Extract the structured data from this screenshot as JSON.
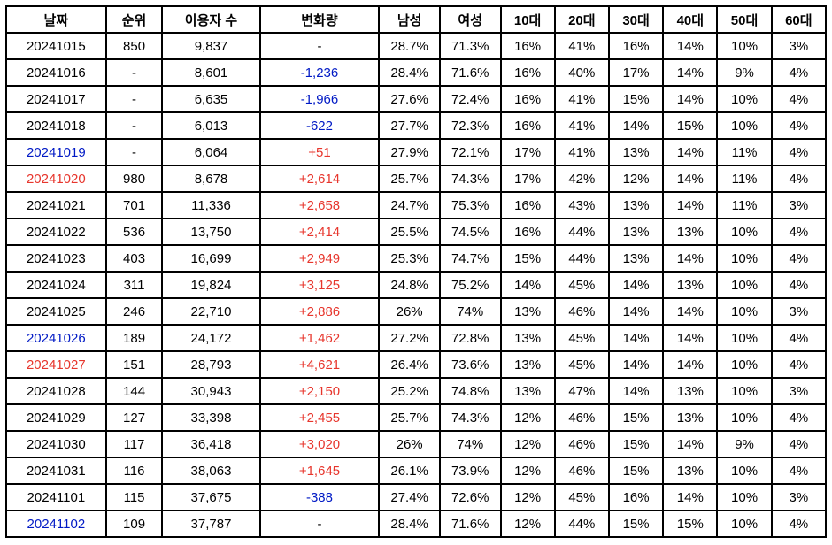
{
  "columns": [
    {
      "key": "date",
      "label": "날짜",
      "class": "date-col"
    },
    {
      "key": "rank",
      "label": "순위",
      "class": "rank-col"
    },
    {
      "key": "users",
      "label": "이용자 수",
      "class": "users-col"
    },
    {
      "key": "change",
      "label": "변화량",
      "class": "change-col"
    },
    {
      "key": "male",
      "label": "남성",
      "class": "pct-col"
    },
    {
      "key": "female",
      "label": "여성",
      "class": "pct-col"
    },
    {
      "key": "a10",
      "label": "10대",
      "class": "age-col"
    },
    {
      "key": "a20",
      "label": "20대",
      "class": "age-col"
    },
    {
      "key": "a30",
      "label": "30대",
      "class": "age-col"
    },
    {
      "key": "a40",
      "label": "40대",
      "class": "age-col"
    },
    {
      "key": "a50",
      "label": "50대",
      "class": "age-col"
    },
    {
      "key": "a60",
      "label": "60대",
      "class": "age-col"
    }
  ],
  "colors": {
    "default": "#000000",
    "blue": "#0019c5",
    "red": "#e7362d"
  },
  "rows": [
    {
      "date": "20241015",
      "date_color": "default",
      "rank": "850",
      "users": "9,837",
      "change": "-",
      "change_color": "default",
      "male": "28.7%",
      "female": "71.3%",
      "a10": "16%",
      "a20": "41%",
      "a30": "16%",
      "a40": "14%",
      "a50": "10%",
      "a60": "3%"
    },
    {
      "date": "20241016",
      "date_color": "default",
      "rank": "-",
      "users": "8,601",
      "change": "-1,236",
      "change_color": "blue",
      "male": "28.4%",
      "female": "71.6%",
      "a10": "16%",
      "a20": "40%",
      "a30": "17%",
      "a40": "14%",
      "a50": "9%",
      "a60": "4%"
    },
    {
      "date": "20241017",
      "date_color": "default",
      "rank": "-",
      "users": "6,635",
      "change": "-1,966",
      "change_color": "blue",
      "male": "27.6%",
      "female": "72.4%",
      "a10": "16%",
      "a20": "41%",
      "a30": "15%",
      "a40": "14%",
      "a50": "10%",
      "a60": "4%"
    },
    {
      "date": "20241018",
      "date_color": "default",
      "rank": "-",
      "users": "6,013",
      "change": "-622",
      "change_color": "blue",
      "male": "27.7%",
      "female": "72.3%",
      "a10": "16%",
      "a20": "41%",
      "a30": "14%",
      "a40": "15%",
      "a50": "10%",
      "a60": "4%"
    },
    {
      "date": "20241019",
      "date_color": "blue",
      "rank": "-",
      "users": "6,064",
      "change": "+51",
      "change_color": "red",
      "male": "27.9%",
      "female": "72.1%",
      "a10": "17%",
      "a20": "41%",
      "a30": "13%",
      "a40": "14%",
      "a50": "11%",
      "a60": "4%"
    },
    {
      "date": "20241020",
      "date_color": "red",
      "rank": "980",
      "users": "8,678",
      "change": "+2,614",
      "change_color": "red",
      "male": "25.7%",
      "female": "74.3%",
      "a10": "17%",
      "a20": "42%",
      "a30": "12%",
      "a40": "14%",
      "a50": "11%",
      "a60": "4%"
    },
    {
      "date": "20241021",
      "date_color": "default",
      "rank": "701",
      "users": "11,336",
      "change": "+2,658",
      "change_color": "red",
      "male": "24.7%",
      "female": "75.3%",
      "a10": "16%",
      "a20": "43%",
      "a30": "13%",
      "a40": "14%",
      "a50": "11%",
      "a60": "3%"
    },
    {
      "date": "20241022",
      "date_color": "default",
      "rank": "536",
      "users": "13,750",
      "change": "+2,414",
      "change_color": "red",
      "male": "25.5%",
      "female": "74.5%",
      "a10": "16%",
      "a20": "44%",
      "a30": "13%",
      "a40": "13%",
      "a50": "10%",
      "a60": "4%"
    },
    {
      "date": "20241023",
      "date_color": "default",
      "rank": "403",
      "users": "16,699",
      "change": "+2,949",
      "change_color": "red",
      "male": "25.3%",
      "female": "74.7%",
      "a10": "15%",
      "a20": "44%",
      "a30": "13%",
      "a40": "14%",
      "a50": "10%",
      "a60": "4%"
    },
    {
      "date": "20241024",
      "date_color": "default",
      "rank": "311",
      "users": "19,824",
      "change": "+3,125",
      "change_color": "red",
      "male": "24.8%",
      "female": "75.2%",
      "a10": "14%",
      "a20": "45%",
      "a30": "14%",
      "a40": "13%",
      "a50": "10%",
      "a60": "4%"
    },
    {
      "date": "20241025",
      "date_color": "default",
      "rank": "246",
      "users": "22,710",
      "change": "+2,886",
      "change_color": "red",
      "male": "26%",
      "female": "74%",
      "a10": "13%",
      "a20": "46%",
      "a30": "14%",
      "a40": "14%",
      "a50": "10%",
      "a60": "3%"
    },
    {
      "date": "20241026",
      "date_color": "blue",
      "rank": "189",
      "users": "24,172",
      "change": "+1,462",
      "change_color": "red",
      "male": "27.2%",
      "female": "72.8%",
      "a10": "13%",
      "a20": "45%",
      "a30": "14%",
      "a40": "14%",
      "a50": "10%",
      "a60": "4%"
    },
    {
      "date": "20241027",
      "date_color": "red",
      "rank": "151",
      "users": "28,793",
      "change": "+4,621",
      "change_color": "red",
      "male": "26.4%",
      "female": "73.6%",
      "a10": "13%",
      "a20": "45%",
      "a30": "14%",
      "a40": "14%",
      "a50": "10%",
      "a60": "4%"
    },
    {
      "date": "20241028",
      "date_color": "default",
      "rank": "144",
      "users": "30,943",
      "change": "+2,150",
      "change_color": "red",
      "male": "25.2%",
      "female": "74.8%",
      "a10": "13%",
      "a20": "47%",
      "a30": "14%",
      "a40": "13%",
      "a50": "10%",
      "a60": "3%"
    },
    {
      "date": "20241029",
      "date_color": "default",
      "rank": "127",
      "users": "33,398",
      "change": "+2,455",
      "change_color": "red",
      "male": "25.7%",
      "female": "74.3%",
      "a10": "12%",
      "a20": "46%",
      "a30": "15%",
      "a40": "13%",
      "a50": "10%",
      "a60": "4%"
    },
    {
      "date": "20241030",
      "date_color": "default",
      "rank": "117",
      "users": "36,418",
      "change": "+3,020",
      "change_color": "red",
      "male": "26%",
      "female": "74%",
      "a10": "12%",
      "a20": "46%",
      "a30": "15%",
      "a40": "14%",
      "a50": "9%",
      "a60": "4%"
    },
    {
      "date": "20241031",
      "date_color": "default",
      "rank": "116",
      "users": "38,063",
      "change": "+1,645",
      "change_color": "red",
      "male": "26.1%",
      "female": "73.9%",
      "a10": "12%",
      "a20": "46%",
      "a30": "15%",
      "a40": "13%",
      "a50": "10%",
      "a60": "4%"
    },
    {
      "date": "20241101",
      "date_color": "default",
      "rank": "115",
      "users": "37,675",
      "change": "-388",
      "change_color": "blue",
      "male": "27.4%",
      "female": "72.6%",
      "a10": "12%",
      "a20": "45%",
      "a30": "16%",
      "a40": "14%",
      "a50": "10%",
      "a60": "3%"
    },
    {
      "date": "20241102",
      "date_color": "blue",
      "rank": "109",
      "users": "37,787",
      "change": "-",
      "change_color": "default",
      "male": "28.4%",
      "female": "71.6%",
      "a10": "12%",
      "a20": "44%",
      "a30": "15%",
      "a40": "15%",
      "a50": "10%",
      "a60": "4%"
    }
  ]
}
